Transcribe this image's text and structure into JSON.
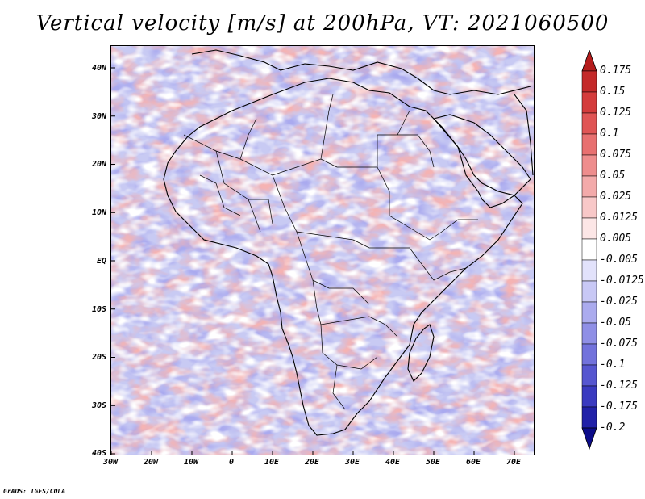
{
  "title": "Vertical velocity [m/s] at 200hPa, VT: 2021060500",
  "credit": "GrADS: IGES/COLA",
  "map": {
    "lon_range": [
      -30,
      75
    ],
    "lat_range": [
      -40,
      45
    ],
    "y_ticks": [
      "40N",
      "30N",
      "20N",
      "10N",
      "EQ",
      "10S",
      "20S",
      "30S",
      "40S"
    ],
    "x_ticks": [
      "30W",
      "20W",
      "10W",
      "0",
      "10E",
      "20E",
      "30E",
      "40E",
      "50E",
      "60E",
      "70E"
    ]
  },
  "colorbar": {
    "labels": [
      "0.175",
      "0.15",
      "0.125",
      "0.1",
      "0.075",
      "0.05",
      "0.025",
      "0.0125",
      "0.005",
      "-0.005",
      "-0.0125",
      "-0.025",
      "-0.05",
      "-0.075",
      "-0.1",
      "-0.125",
      "-0.175",
      "-0.2"
    ],
    "colors": [
      "#b51c1c",
      "#c42a2a",
      "#d43c3c",
      "#e05555",
      "#e87070",
      "#ee8d8d",
      "#f3aaaa",
      "#f8c8c8",
      "#fce6e6",
      "#ffffff",
      "#e2e2fb",
      "#c8c8f5",
      "#ababee",
      "#8f8fe6",
      "#7272dc",
      "#5656d0",
      "#3a3ac0",
      "#2121a8",
      "#0c0c8a"
    ]
  },
  "colors": {
    "map_base": "#c8caf3",
    "positive": "#e87a7a",
    "negative": "#7676dc",
    "outline": "#000000"
  }
}
